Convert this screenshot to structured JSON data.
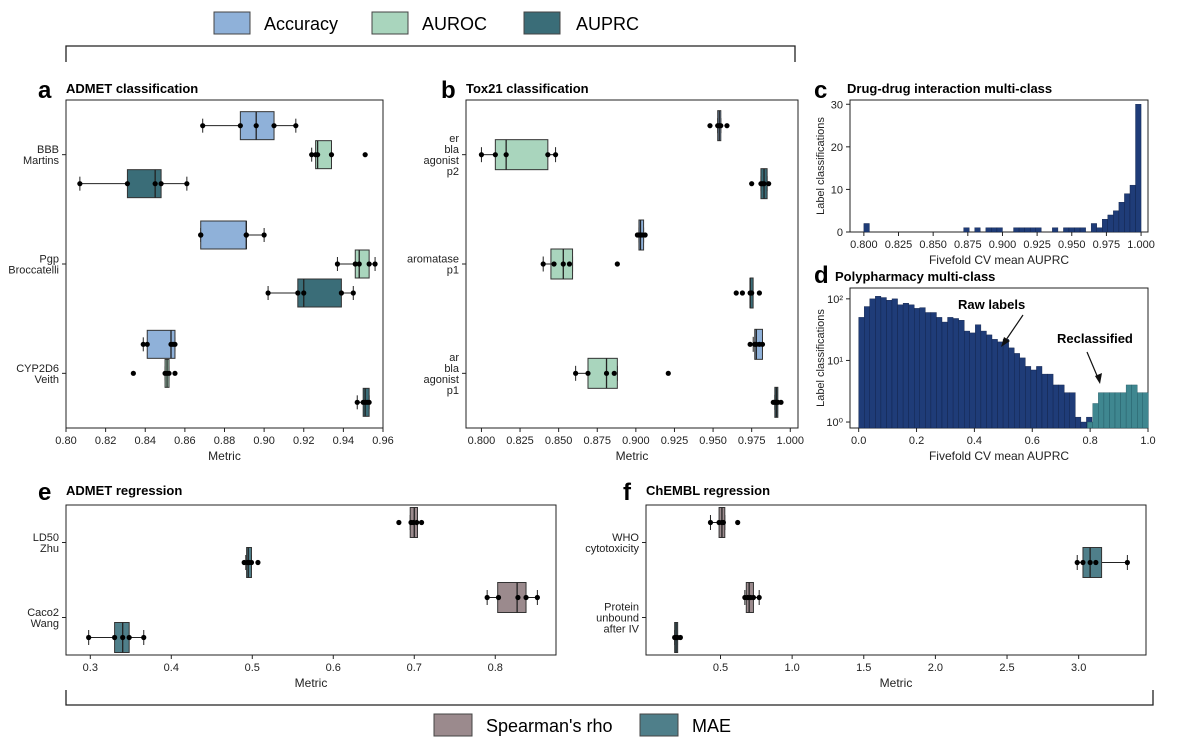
{
  "legend_top": [
    {
      "label": "Accuracy",
      "color": "#8fb1d9"
    },
    {
      "label": "AUROC",
      "color": "#a9d5bd"
    },
    {
      "label": "AUPRC",
      "color": "#3a6d78"
    }
  ],
  "legend_bottom": [
    {
      "label": "Spearman's rho",
      "color": "#9b8a8d"
    },
    {
      "label": "MAE",
      "color": "#4f7f8a"
    }
  ],
  "colors": {
    "Accuracy": "#8fb1d9",
    "AUROC": "#a9d5bd",
    "AUPRC": "#3a6d78",
    "Spearman's rho": "#9b8a8d",
    "MAE": "#4f7f8a",
    "raw": "#1f3c78",
    "reclassified": "#3f8790"
  },
  "panels": {
    "a": {
      "letter": "a",
      "title": "ADMET classification"
    },
    "b": {
      "letter": "b",
      "title": "Tox21 classification"
    },
    "c": {
      "letter": "c",
      "title": "Drug-drug interaction multi-class"
    },
    "d": {
      "letter": "d",
      "title": "Polypharmacy multi-class"
    },
    "e": {
      "letter": "e",
      "title": "ADMET regression"
    },
    "f": {
      "letter": "f",
      "title": "ChEMBL regression"
    }
  },
  "chart_data": [
    {
      "id": "a",
      "type": "box",
      "orientation": "horizontal",
      "xlabel": "Metric",
      "xlim": [
        0.8,
        0.96
      ],
      "xticks": [
        "0.80",
        "0.82",
        "0.84",
        "0.86",
        "0.88",
        "0.90",
        "0.92",
        "0.94",
        "0.96"
      ],
      "groups": [
        {
          "label": [
            "BBB",
            "Martins"
          ],
          "boxes": [
            {
              "metric": "Accuracy",
              "whislo": 0.869,
              "q1": 0.888,
              "med": 0.896,
              "q3": 0.905,
              "whishi": 0.916,
              "points": [
                0.869,
                0.888,
                0.896,
                0.905,
                0.916
              ]
            },
            {
              "metric": "AUROC",
              "whislo": 0.924,
              "q1": 0.926,
              "med": 0.927,
              "q3": 0.934,
              "whishi": 0.934,
              "points": [
                0.924,
                0.926,
                0.927,
                0.934,
                0.951
              ]
            },
            {
              "metric": "AUPRC",
              "whislo": 0.807,
              "q1": 0.831,
              "med": 0.845,
              "q3": 0.848,
              "whishi": 0.861,
              "points": [
                0.807,
                0.831,
                0.845,
                0.848,
                0.861
              ]
            }
          ]
        },
        {
          "label": [
            "Pgp",
            "Broccatelli"
          ],
          "boxes": [
            {
              "metric": "Accuracy",
              "whislo": 0.868,
              "q1": 0.868,
              "med": 0.891,
              "q3": 0.891,
              "whishi": 0.9,
              "points": [
                0.868,
                0.868,
                0.891,
                0.891,
                0.9
              ]
            },
            {
              "metric": "AUROC",
              "whislo": 0.937,
              "q1": 0.946,
              "med": 0.948,
              "q3": 0.953,
              "whishi": 0.956,
              "points": [
                0.937,
                0.946,
                0.948,
                0.953,
                0.956
              ]
            },
            {
              "metric": "AUPRC",
              "whislo": 0.902,
              "q1": 0.917,
              "med": 0.92,
              "q3": 0.939,
              "whishi": 0.945,
              "points": [
                0.902,
                0.917,
                0.92,
                0.939,
                0.945
              ]
            }
          ]
        },
        {
          "label": [
            "CYP2D6",
            "Veith"
          ],
          "boxes": [
            {
              "metric": "Accuracy",
              "whislo": 0.839,
              "q1": 0.841,
              "med": 0.853,
              "q3": 0.855,
              "whishi": 0.855,
              "points": [
                0.839,
                0.841,
                0.853,
                0.854,
                0.855
              ]
            },
            {
              "metric": "AUROC",
              "whislo": 0.85,
              "q1": 0.85,
              "med": 0.851,
              "q3": 0.852,
              "whishi": 0.852,
              "points": [
                0.834,
                0.85,
                0.851,
                0.852,
                0.855
              ]
            },
            {
              "metric": "AUPRC",
              "whislo": 0.947,
              "q1": 0.95,
              "med": 0.951,
              "q3": 0.953,
              "whishi": 0.953,
              "points": [
                0.947,
                0.95,
                0.951,
                0.952,
                0.953
              ]
            }
          ]
        }
      ]
    },
    {
      "id": "b",
      "type": "box",
      "orientation": "horizontal",
      "xlabel": "Metric",
      "xlim": [
        0.79,
        1.005
      ],
      "xticks": [
        "0.800",
        "0.825",
        "0.850",
        "0.875",
        "0.900",
        "0.925",
        "0.950",
        "0.975",
        "1.000"
      ],
      "groups": [
        {
          "label": [
            "er",
            "bla",
            "agonist",
            "p2"
          ],
          "boxes": [
            {
              "metric": "Accuracy",
              "whislo": 0.953,
              "q1": 0.953,
              "med": 0.954,
              "q3": 0.955,
              "whishi": 0.955,
              "points": [
                0.948,
                0.953,
                0.954,
                0.955,
                0.959
              ]
            },
            {
              "metric": "AUROC",
              "whislo": 0.8,
              "q1": 0.809,
              "med": 0.816,
              "q3": 0.843,
              "whishi": 0.848,
              "points": [
                0.8,
                0.809,
                0.816,
                0.843,
                0.848
              ]
            },
            {
              "metric": "AUPRC",
              "whislo": 0.981,
              "q1": 0.981,
              "med": 0.983,
              "q3": 0.985,
              "whishi": 0.985,
              "points": [
                0.975,
                0.981,
                0.982,
                0.983,
                0.986
              ]
            }
          ]
        },
        {
          "label": [
            "aromatase",
            "p1"
          ],
          "boxes": [
            {
              "metric": "Accuracy",
              "whislo": 0.902,
              "q1": 0.902,
              "med": 0.903,
              "q3": 0.905,
              "whishi": 0.905,
              "points": [
                0.901,
                0.902,
                0.903,
                0.904,
                0.906
              ]
            },
            {
              "metric": "AUROC",
              "whislo": 0.84,
              "q1": 0.845,
              "med": 0.853,
              "q3": 0.859,
              "whishi": 0.859,
              "points": [
                0.84,
                0.847,
                0.853,
                0.857,
                0.888
              ]
            },
            {
              "metric": "AUPRC",
              "whislo": 0.974,
              "q1": 0.974,
              "med": 0.974,
              "q3": 0.975,
              "whishi": 0.975,
              "points": [
                0.965,
                0.969,
                0.974,
                0.975,
                0.98
              ]
            }
          ]
        },
        {
          "label": [
            "ar",
            "bla",
            "agonist",
            "p1"
          ],
          "boxes": [
            {
              "metric": "Accuracy",
              "whislo": 0.976,
              "q1": 0.977,
              "med": 0.978,
              "q3": 0.982,
              "whishi": 0.982,
              "points": [
                0.974,
                0.977,
                0.978,
                0.98,
                0.982
              ]
            },
            {
              "metric": "AUROC",
              "whislo": 0.861,
              "q1": 0.869,
              "med": 0.881,
              "q3": 0.888,
              "whishi": 0.888,
              "points": [
                0.861,
                0.869,
                0.881,
                0.886,
                0.921
              ]
            },
            {
              "metric": "AUPRC",
              "whislo": 0.99,
              "q1": 0.99,
              "med": 0.991,
              "q3": 0.991,
              "whishi": 0.991,
              "points": [
                0.989,
                0.99,
                0.991,
                0.992,
                0.994
              ]
            }
          ]
        }
      ]
    },
    {
      "id": "c",
      "type": "bar",
      "xlabel": "Fivefold CV mean AUPRC",
      "ylabel": "Label classifications",
      "xlim": [
        0.79,
        1.005
      ],
      "ylim": [
        0,
        31
      ],
      "xticks": [
        "0.800",
        "0.825",
        "0.850",
        "0.875",
        "0.900",
        "0.925",
        "0.950",
        "0.975",
        "1.000"
      ],
      "yticks": [
        "0",
        "10",
        "20",
        "30"
      ],
      "bin_width": 0.004,
      "bins": [
        [
          0.802,
          2
        ],
        [
          0.874,
          1
        ],
        [
          0.882,
          1
        ],
        [
          0.89,
          1
        ],
        [
          0.894,
          1
        ],
        [
          0.898,
          1
        ],
        [
          0.91,
          1
        ],
        [
          0.914,
          1
        ],
        [
          0.918,
          1
        ],
        [
          0.922,
          1
        ],
        [
          0.926,
          1
        ],
        [
          0.938,
          1
        ],
        [
          0.946,
          1
        ],
        [
          0.95,
          1
        ],
        [
          0.954,
          1
        ],
        [
          0.958,
          1
        ],
        [
          0.966,
          2
        ],
        [
          0.97,
          1
        ],
        [
          0.974,
          3
        ],
        [
          0.978,
          4
        ],
        [
          0.982,
          5
        ],
        [
          0.986,
          7
        ],
        [
          0.99,
          9
        ],
        [
          0.994,
          11
        ],
        [
          0.998,
          30
        ]
      ]
    },
    {
      "id": "d",
      "type": "bar",
      "yscale": "log",
      "xlabel": "Fivefold CV mean AUPRC",
      "ylabel": "Label classifications",
      "xlim": [
        -0.03,
        1.0
      ],
      "ylim": [
        0.8,
        150
      ],
      "xticks": [
        "0.0",
        "0.2",
        "0.4",
        "0.6",
        "0.8",
        "1.0"
      ],
      "yticks": [
        "10⁰",
        "10¹",
        "10²"
      ],
      "bin_width": 0.0192,
      "series": [
        {
          "name": "Raw labels",
          "x0": 0.0,
          "values": [
            50,
            75,
            100,
            110,
            105,
            95,
            100,
            80,
            85,
            80,
            70,
            72,
            60,
            60,
            50,
            42,
            50,
            48,
            45,
            30,
            28,
            38,
            30,
            26,
            22,
            20,
            22,
            16,
            13,
            11,
            8,
            7,
            8,
            6,
            6,
            4,
            4,
            3,
            3,
            1.2,
            1,
            1.2
          ]
        },
        {
          "name": "Reclassified",
          "x0": 0.79,
          "values": [
            1,
            2,
            3,
            3,
            3,
            3,
            3,
            4,
            4,
            3,
            3
          ]
        }
      ],
      "annotations": [
        "Raw labels",
        "Reclassified"
      ]
    },
    {
      "id": "e",
      "type": "box",
      "orientation": "horizontal",
      "xlabel": "Metric",
      "xlim": [
        0.27,
        0.875
      ],
      "xticks": [
        "0.3",
        "0.4",
        "0.5",
        "0.6",
        "0.7",
        "0.8"
      ],
      "groups": [
        {
          "label": [
            "LD50",
            "Zhu"
          ],
          "boxes": [
            {
              "metric": "Spearman's rho",
              "whislo": 0.695,
              "q1": 0.695,
              "med": 0.7,
              "q3": 0.704,
              "whishi": 0.704,
              "points": [
                0.681,
                0.696,
                0.699,
                0.703,
                0.709
              ]
            },
            {
              "metric": "MAE",
              "whislo": 0.492,
              "q1": 0.493,
              "med": 0.495,
              "q3": 0.499,
              "whishi": 0.499,
              "points": [
                0.49,
                0.494,
                0.496,
                0.499,
                0.507
              ]
            }
          ]
        },
        {
          "label": [
            "Caco2",
            "Wang"
          ],
          "boxes": [
            {
              "metric": "Spearman's rho",
              "whislo": 0.79,
              "q1": 0.803,
              "med": 0.827,
              "q3": 0.838,
              "whishi": 0.852,
              "points": [
                0.79,
                0.804,
                0.828,
                0.838,
                0.852
              ]
            },
            {
              "metric": "MAE",
              "whislo": 0.298,
              "q1": 0.33,
              "med": 0.34,
              "q3": 0.348,
              "whishi": 0.366,
              "points": [
                0.298,
                0.33,
                0.34,
                0.348,
                0.366
              ]
            }
          ]
        }
      ]
    },
    {
      "id": "f",
      "type": "box",
      "orientation": "horizontal",
      "xlabel": "Metric",
      "xlim": [
        -0.02,
        3.47
      ],
      "xticks": [
        "0.5",
        "1.0",
        "1.5",
        "2.0",
        "2.5",
        "3.0"
      ],
      "groups": [
        {
          "label": [
            "WHO",
            "cytotoxicity"
          ],
          "boxes": [
            {
              "metric": "Spearman's rho",
              "whislo": 0.43,
              "q1": 0.49,
              "med": 0.51,
              "q3": 0.53,
              "whishi": 0.53,
              "points": [
                0.43,
                0.49,
                0.51,
                0.52,
                0.62
              ]
            },
            {
              "metric": "MAE",
              "whislo": 2.99,
              "q1": 3.03,
              "med": 3.08,
              "q3": 3.16,
              "whishi": 3.34,
              "points": [
                2.99,
                3.03,
                3.08,
                3.12,
                3.34
              ]
            }
          ]
        },
        {
          "label": [
            "Protein",
            "unbound",
            "after IV"
          ],
          "boxes": [
            {
              "metric": "Spearman's rho",
              "whislo": 0.67,
              "q1": 0.68,
              "med": 0.7,
              "q3": 0.73,
              "whishi": 0.77,
              "points": [
                0.67,
                0.69,
                0.71,
                0.73,
                0.77
              ]
            },
            {
              "metric": "MAE",
              "whislo": 0.18,
              "q1": 0.18,
              "med": 0.19,
              "q3": 0.2,
              "whishi": 0.2,
              "points": [
                0.18,
                0.19,
                0.19,
                0.2,
                0.22
              ]
            }
          ]
        }
      ]
    }
  ]
}
